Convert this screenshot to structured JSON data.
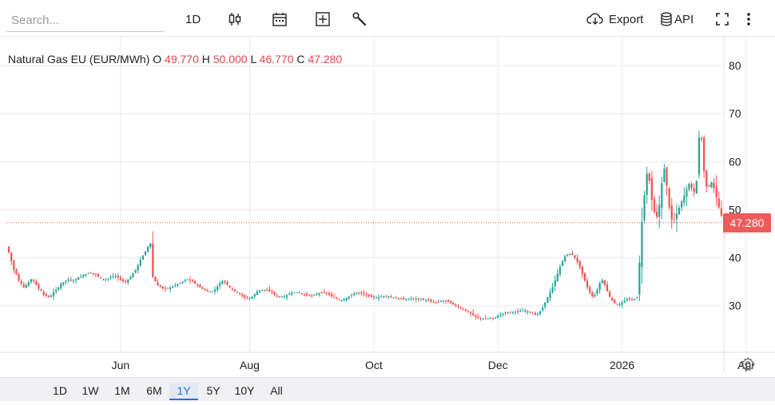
{
  "toolbar": {
    "search_placeholder": "Search...",
    "interval_label": "1D",
    "export_label": "Export",
    "api_label": "API"
  },
  "ohlc": {
    "instrument": "Natural Gas EU (EUR/MWh)",
    "o_label": "O",
    "o_value": "49.770",
    "h_label": "H",
    "h_value": "50.000",
    "l_label": "L",
    "l_value": "46.770",
    "c_label": "C",
    "c_value": "47.280"
  },
  "last_price": "47.280",
  "range_buttons": [
    "1D",
    "1W",
    "1M",
    "6M",
    "1Y",
    "5Y",
    "10Y",
    "All"
  ],
  "active_range": "1Y",
  "colors": {
    "up": "#26a69a",
    "down": "#ef5350",
    "price_tag": "#ef5a5a",
    "active": "#2a6fd6",
    "grid": "#ececec"
  },
  "chart_data": {
    "type": "candlestick",
    "title": "Natural Gas EU (EUR/MWh)",
    "xlabel": "",
    "ylabel": "",
    "ylim": [
      20.3,
      86.0
    ],
    "y_ticks": [
      30,
      40,
      50,
      60,
      70,
      80
    ],
    "x_ticks": [
      {
        "label": "Jun",
        "index": 46
      },
      {
        "label": "Aug",
        "index": 98
      },
      {
        "label": "Oct",
        "index": 148
      },
      {
        "label": "Dec",
        "index": 198
      },
      {
        "label": "2026",
        "index": 248
      },
      {
        "label": "Apr",
        "index": 298
      }
    ],
    "last_close": 47.28,
    "grid": true,
    "closes": [
      42.3,
      41.1,
      39.3,
      37.5,
      36.5,
      35.2,
      34.6,
      33.8,
      34.3,
      34.9,
      35.5,
      35.2,
      34.4,
      33.5,
      33.1,
      32.3,
      32.0,
      31.9,
      32.1,
      32.8,
      33.3,
      33.8,
      34.5,
      34.9,
      35.2,
      35.5,
      35.2,
      35.2,
      35.5,
      35.9,
      36.0,
      36.4,
      36.5,
      36.8,
      36.8,
      36.6,
      36.5,
      36.1,
      35.7,
      35.5,
      35.5,
      35.7,
      36.0,
      36.1,
      36.2,
      35.9,
      35.4,
      35.1,
      35.0,
      35.4,
      36.0,
      36.7,
      37.5,
      38.5,
      39.5,
      40.4,
      41.3,
      42.3,
      43.0,
      36.0,
      35.0,
      34.2,
      33.9,
      33.6,
      33.6,
      33.6,
      33.8,
      34.0,
      34.3,
      34.5,
      34.7,
      35.0,
      35.3,
      35.5,
      35.3,
      35.0,
      34.6,
      34.2,
      33.8,
      33.5,
      33.2,
      33.0,
      32.9,
      33.0,
      33.4,
      34.0,
      34.7,
      35.1,
      34.9,
      34.4,
      33.8,
      33.4,
      33.1,
      32.8,
      32.4,
      32.0,
      31.7,
      31.5,
      31.6,
      31.8,
      32.4,
      32.9,
      33.2,
      33.3,
      33.3,
      33.2,
      33.0,
      32.7,
      32.3,
      32.0,
      31.9,
      31.9,
      31.9,
      32.2,
      32.5,
      32.7,
      32.8,
      32.8,
      32.7,
      32.5,
      32.3,
      32.2,
      32.1,
      32.1,
      32.2,
      32.4,
      32.6,
      32.7,
      32.7,
      32.6,
      32.3,
      32.0,
      31.7,
      31.4,
      31.2,
      31.1,
      31.3,
      31.6,
      31.9,
      32.2,
      32.5,
      32.7,
      32.7,
      32.6,
      32.4,
      32.2,
      32.0,
      31.8,
      31.7,
      31.7,
      31.8,
      31.9,
      32.0,
      32.0,
      31.9,
      31.8,
      31.7,
      31.6,
      31.5,
      31.4,
      31.3,
      31.3,
      31.4,
      31.5,
      31.5,
      31.5,
      31.4,
      31.3,
      31.2,
      31.1,
      31.0,
      30.8,
      30.7,
      30.7,
      30.8,
      31.0,
      31.0,
      31.0,
      30.8,
      30.5,
      30.3,
      30.0,
      29.7,
      29.5,
      29.2,
      28.9,
      28.7,
      28.4,
      28.0,
      27.7,
      27.5,
      27.3,
      27.3,
      27.3,
      27.4,
      27.4,
      27.4,
      27.6,
      27.9,
      28.2,
      28.4,
      28.5,
      28.6,
      28.7,
      28.7,
      28.7,
      28.8,
      28.9,
      29.0,
      29.0,
      28.9,
      28.6,
      28.3,
      28.1,
      28.3,
      28.8,
      29.6,
      30.7,
      31.7,
      32.8,
      33.9,
      35.3,
      36.7,
      38.1,
      39.3,
      40.3,
      40.7,
      40.8,
      40.6,
      40.0,
      39.1,
      38.0,
      36.6,
      35.2,
      33.8,
      32.7,
      32.0,
      32.3,
      33.3,
      34.7,
      35.3,
      34.4,
      33.0,
      31.9,
      31.1,
      30.5,
      30.3,
      30.3,
      30.6,
      31.0,
      31.3,
      31.3,
      31.3,
      31.4,
      31.8,
      39.0,
      47.5,
      53.0,
      57.5,
      56.0,
      52.0,
      49.5,
      48.5,
      51.0,
      55.5,
      58.5,
      55.0,
      50.5,
      48.0,
      48.0,
      49.2,
      50.4,
      51.7,
      52.9,
      54.2,
      55.4,
      54.6,
      53.7,
      56.0,
      65.0,
      64.8,
      58.0,
      54.8,
      54.8,
      55.7,
      54.5,
      52.6,
      50.5,
      48.7,
      47.28
    ]
  }
}
